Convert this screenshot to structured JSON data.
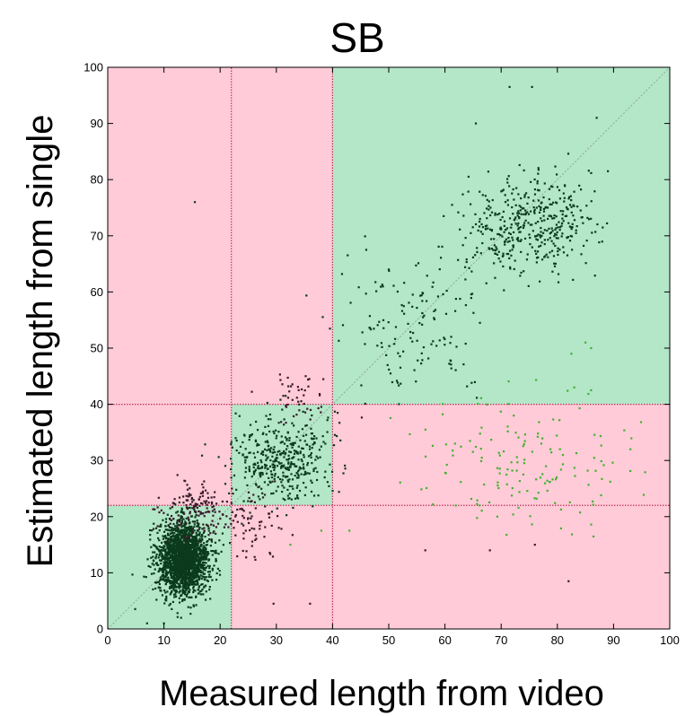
{
  "chart_data": {
    "type": "scatter",
    "title": "SB",
    "xlabel": "Measured length from video",
    "ylabel": "Estimated length from single",
    "xlim": [
      0,
      100
    ],
    "ylim": [
      0,
      100
    ],
    "xticks": [
      0,
      10,
      20,
      30,
      40,
      50,
      60,
      70,
      80,
      90,
      100
    ],
    "yticks": [
      0,
      10,
      20,
      30,
      40,
      50,
      60,
      70,
      80,
      90,
      100
    ],
    "thresholds": [
      22,
      40
    ],
    "diagonal": true,
    "grid": false,
    "legend": "none",
    "colors": {
      "agree_region": "#b4e6c8",
      "disagree_region": "#ffcbd8",
      "threshold_line": "#c0305a",
      "diagonal_line": "#889a90",
      "point_main": "#0b3a1c",
      "point_off": "#3a1a2a",
      "point_light": "#44b030"
    },
    "regions": [
      {
        "x": [
          0,
          22
        ],
        "y": [
          0,
          22
        ],
        "agree": true
      },
      {
        "x": [
          22,
          40
        ],
        "y": [
          22,
          40
        ],
        "agree": true
      },
      {
        "x": [
          40,
          100
        ],
        "y": [
          40,
          100
        ],
        "agree": true
      },
      {
        "x": [
          0,
          22
        ],
        "y": [
          22,
          100
        ],
        "agree": false
      },
      {
        "x": [
          22,
          40
        ],
        "y": [
          40,
          100
        ],
        "agree": false
      },
      {
        "x": [
          22,
          100
        ],
        "y": [
          0,
          22
        ],
        "agree": false
      },
      {
        "x": [
          40,
          100
        ],
        "y": [
          22,
          40
        ],
        "agree": false
      }
    ],
    "clusters": [
      {
        "name": "small-dense",
        "cx": 13.5,
        "cy": 12.5,
        "sx": 2.2,
        "sy": 3.2,
        "n": 2200,
        "color": "point_main"
      },
      {
        "name": "small-upper-fringe",
        "cx": 17,
        "cy": 21,
        "sx": 3.5,
        "sy": 2.5,
        "n": 160,
        "color": "point_off"
      },
      {
        "name": "small-right-fringe",
        "cx": 25,
        "cy": 18,
        "sx": 2.5,
        "sy": 3.0,
        "n": 60,
        "color": "point_off"
      },
      {
        "name": "medium",
        "cx": 31,
        "cy": 30.5,
        "sx": 4.3,
        "sy": 4.0,
        "n": 420,
        "color": "point_main"
      },
      {
        "name": "medium-upper-fringe",
        "cx": 34,
        "cy": 41,
        "sx": 3.0,
        "sy": 2.5,
        "n": 45,
        "color": "point_off"
      },
      {
        "name": "large-main",
        "cx": 75,
        "cy": 72,
        "sx": 5.5,
        "sy": 4.2,
        "n": 420,
        "color": "point_main"
      },
      {
        "name": "large-tail",
        "cx": 55,
        "cy": 54,
        "sx": 7.0,
        "sy": 6.5,
        "n": 140,
        "color": "point_main"
      },
      {
        "name": "large-underestimated",
        "cx": 74,
        "cy": 30,
        "sx": 9.5,
        "sy": 5.5,
        "n": 150,
        "color": "point_light"
      }
    ],
    "outliers": [
      {
        "x": 15.5,
        "y": 76,
        "color": "point_main"
      },
      {
        "x": 71.5,
        "y": 96.5,
        "color": "point_main"
      },
      {
        "x": 75.5,
        "y": 96.5,
        "color": "point_main"
      },
      {
        "x": 65.5,
        "y": 90,
        "color": "point_main"
      },
      {
        "x": 87,
        "y": 91,
        "color": "point_main"
      },
      {
        "x": 89,
        "y": 81.5,
        "color": "point_main"
      },
      {
        "x": 86,
        "y": 50,
        "color": "point_light"
      },
      {
        "x": 85,
        "y": 51,
        "color": "point_light"
      },
      {
        "x": 82.5,
        "y": 49,
        "color": "point_light"
      },
      {
        "x": 83,
        "y": 43,
        "color": "point_light"
      },
      {
        "x": 86,
        "y": 42.5,
        "color": "point_light"
      },
      {
        "x": 93,
        "y": 32,
        "color": "point_light"
      },
      {
        "x": 76,
        "y": 15,
        "color": "point_off"
      },
      {
        "x": 68,
        "y": 14,
        "color": "point_off"
      },
      {
        "x": 82,
        "y": 8.5,
        "color": "point_off"
      },
      {
        "x": 56.5,
        "y": 14,
        "color": "point_off"
      },
      {
        "x": 36,
        "y": 4.5,
        "color": "point_off"
      },
      {
        "x": 29.5,
        "y": 4.5,
        "color": "point_off"
      },
      {
        "x": 32.5,
        "y": 15,
        "color": "point_light"
      },
      {
        "x": 38,
        "y": 17.5,
        "color": "point_light"
      },
      {
        "x": 43,
        "y": 17.5,
        "color": "point_light"
      },
      {
        "x": 7,
        "y": 1,
        "color": "point_main"
      },
      {
        "x": 10,
        "y": 1,
        "color": "point_main"
      },
      {
        "x": 46,
        "y": 67.5,
        "color": "point_main"
      },
      {
        "x": 50,
        "y": 64,
        "color": "point_main"
      }
    ]
  }
}
